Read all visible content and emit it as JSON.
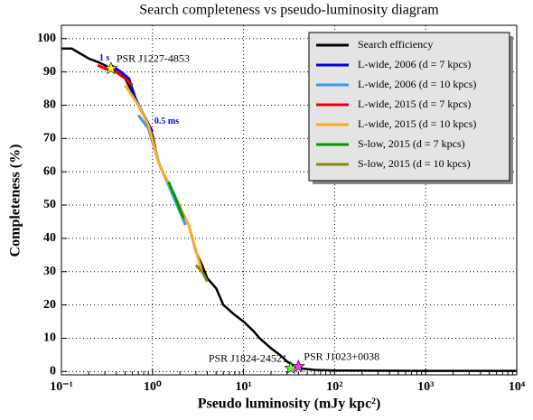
{
  "chart_data": {
    "type": "line",
    "title": "Search completeness vs pseudo-luminosity diagram",
    "xlabel": "Pseudo luminosity (mJy kpc²)",
    "ylabel": "Completeness (%)",
    "xscale": "log",
    "grid": true,
    "legend": "upper right",
    "xlim": [
      0.1,
      10000
    ],
    "xticks": [
      {
        "value": 0.1,
        "label": "10⁻¹"
      },
      {
        "value": 1,
        "label": "10⁰"
      },
      {
        "value": 10,
        "label": "10¹"
      },
      {
        "value": 100,
        "label": "10²"
      },
      {
        "value": 1000,
        "label": "10³"
      },
      {
        "value": 10000,
        "label": "10⁴"
      }
    ],
    "ylim": [
      -1,
      104
    ],
    "yticks": [
      0,
      10,
      20,
      30,
      40,
      50,
      60,
      70,
      80,
      90,
      100
    ],
    "series": [
      {
        "name": "Search efficiency",
        "color": "#000000",
        "x": [
          0.1,
          0.13,
          0.15,
          0.2,
          0.25,
          0.3,
          0.4,
          0.5,
          0.6,
          0.7,
          0.8,
          0.9,
          1.0,
          1.1,
          1.2,
          1.4,
          1.6,
          1.8,
          2.0,
          2.5,
          3,
          3.5,
          4,
          5,
          6,
          8,
          10,
          13,
          15,
          20,
          25,
          30,
          40,
          60,
          100,
          1000,
          10000
        ],
        "values": [
          97,
          97,
          96,
          94,
          93,
          92,
          90,
          88,
          84,
          80,
          77,
          74,
          71,
          66,
          62,
          58,
          55,
          52,
          49,
          44,
          36,
          32,
          28,
          25,
          20,
          17,
          15,
          12,
          10,
          7,
          5,
          3,
          1,
          0.5,
          0.3,
          0.2,
          0.2
        ]
      },
      {
        "name": "L-wide, 2006 (d = 7 kpcs)",
        "color": "#0000dd",
        "x": [
          0.35,
          0.45,
          0.55,
          0.65,
          0.8,
          1.0
        ],
        "values": [
          92,
          90,
          88,
          82,
          77,
          72
        ]
      },
      {
        "name": "L-wide, 2006 (d = 10 kpcs)",
        "color": "#3399ee",
        "x": [
          0.7,
          0.9,
          1.2,
          1.5,
          2.0,
          2.3
        ],
        "values": [
          77,
          73,
          62,
          56,
          48,
          44
        ]
      },
      {
        "name": "L-wide, 2015 (d = 7 kpcs)",
        "color": "#ee0000",
        "x": [
          0.25,
          0.3,
          0.4,
          0.5,
          0.6
        ],
        "values": [
          92,
          91,
          90,
          88,
          86
        ]
      },
      {
        "name": "L-wide, 2015 (d = 10 kpcs)",
        "color": "#ffaa22",
        "x": [
          0.5,
          0.7,
          0.9,
          1.2,
          1.6,
          2.5,
          3.5
        ],
        "values": [
          86,
          80,
          74,
          62,
          55,
          44,
          30
        ]
      },
      {
        "name": "S-low, 2015 (d = 7 kpcs)",
        "color": "#009900",
        "x": [
          1.5,
          1.8,
          2.2
        ],
        "values": [
          57,
          52,
          46
        ]
      },
      {
        "name": "S-low, 2015 (d = 10 kpcs)",
        "color": "#888811",
        "x": [
          3,
          3.5,
          4
        ],
        "values": [
          32,
          30,
          27
        ]
      }
    ],
    "markers": [
      {
        "label": "PSR J1227-4853",
        "x": 0.35,
        "y": 91,
        "color": "#ffee22"
      },
      {
        "label": "PSR J1824-24521",
        "x": 33,
        "y": 1,
        "color": "#66ff33"
      },
      {
        "label": "PSR J1023+0038",
        "x": 40,
        "y": 1.5,
        "color": "#ff33ff"
      }
    ],
    "annotations": [
      {
        "text": "1 s",
        "x": 0.26,
        "y": 94
      },
      {
        "text": "0.5 ms",
        "x": 1.05,
        "y": 75
      }
    ]
  }
}
